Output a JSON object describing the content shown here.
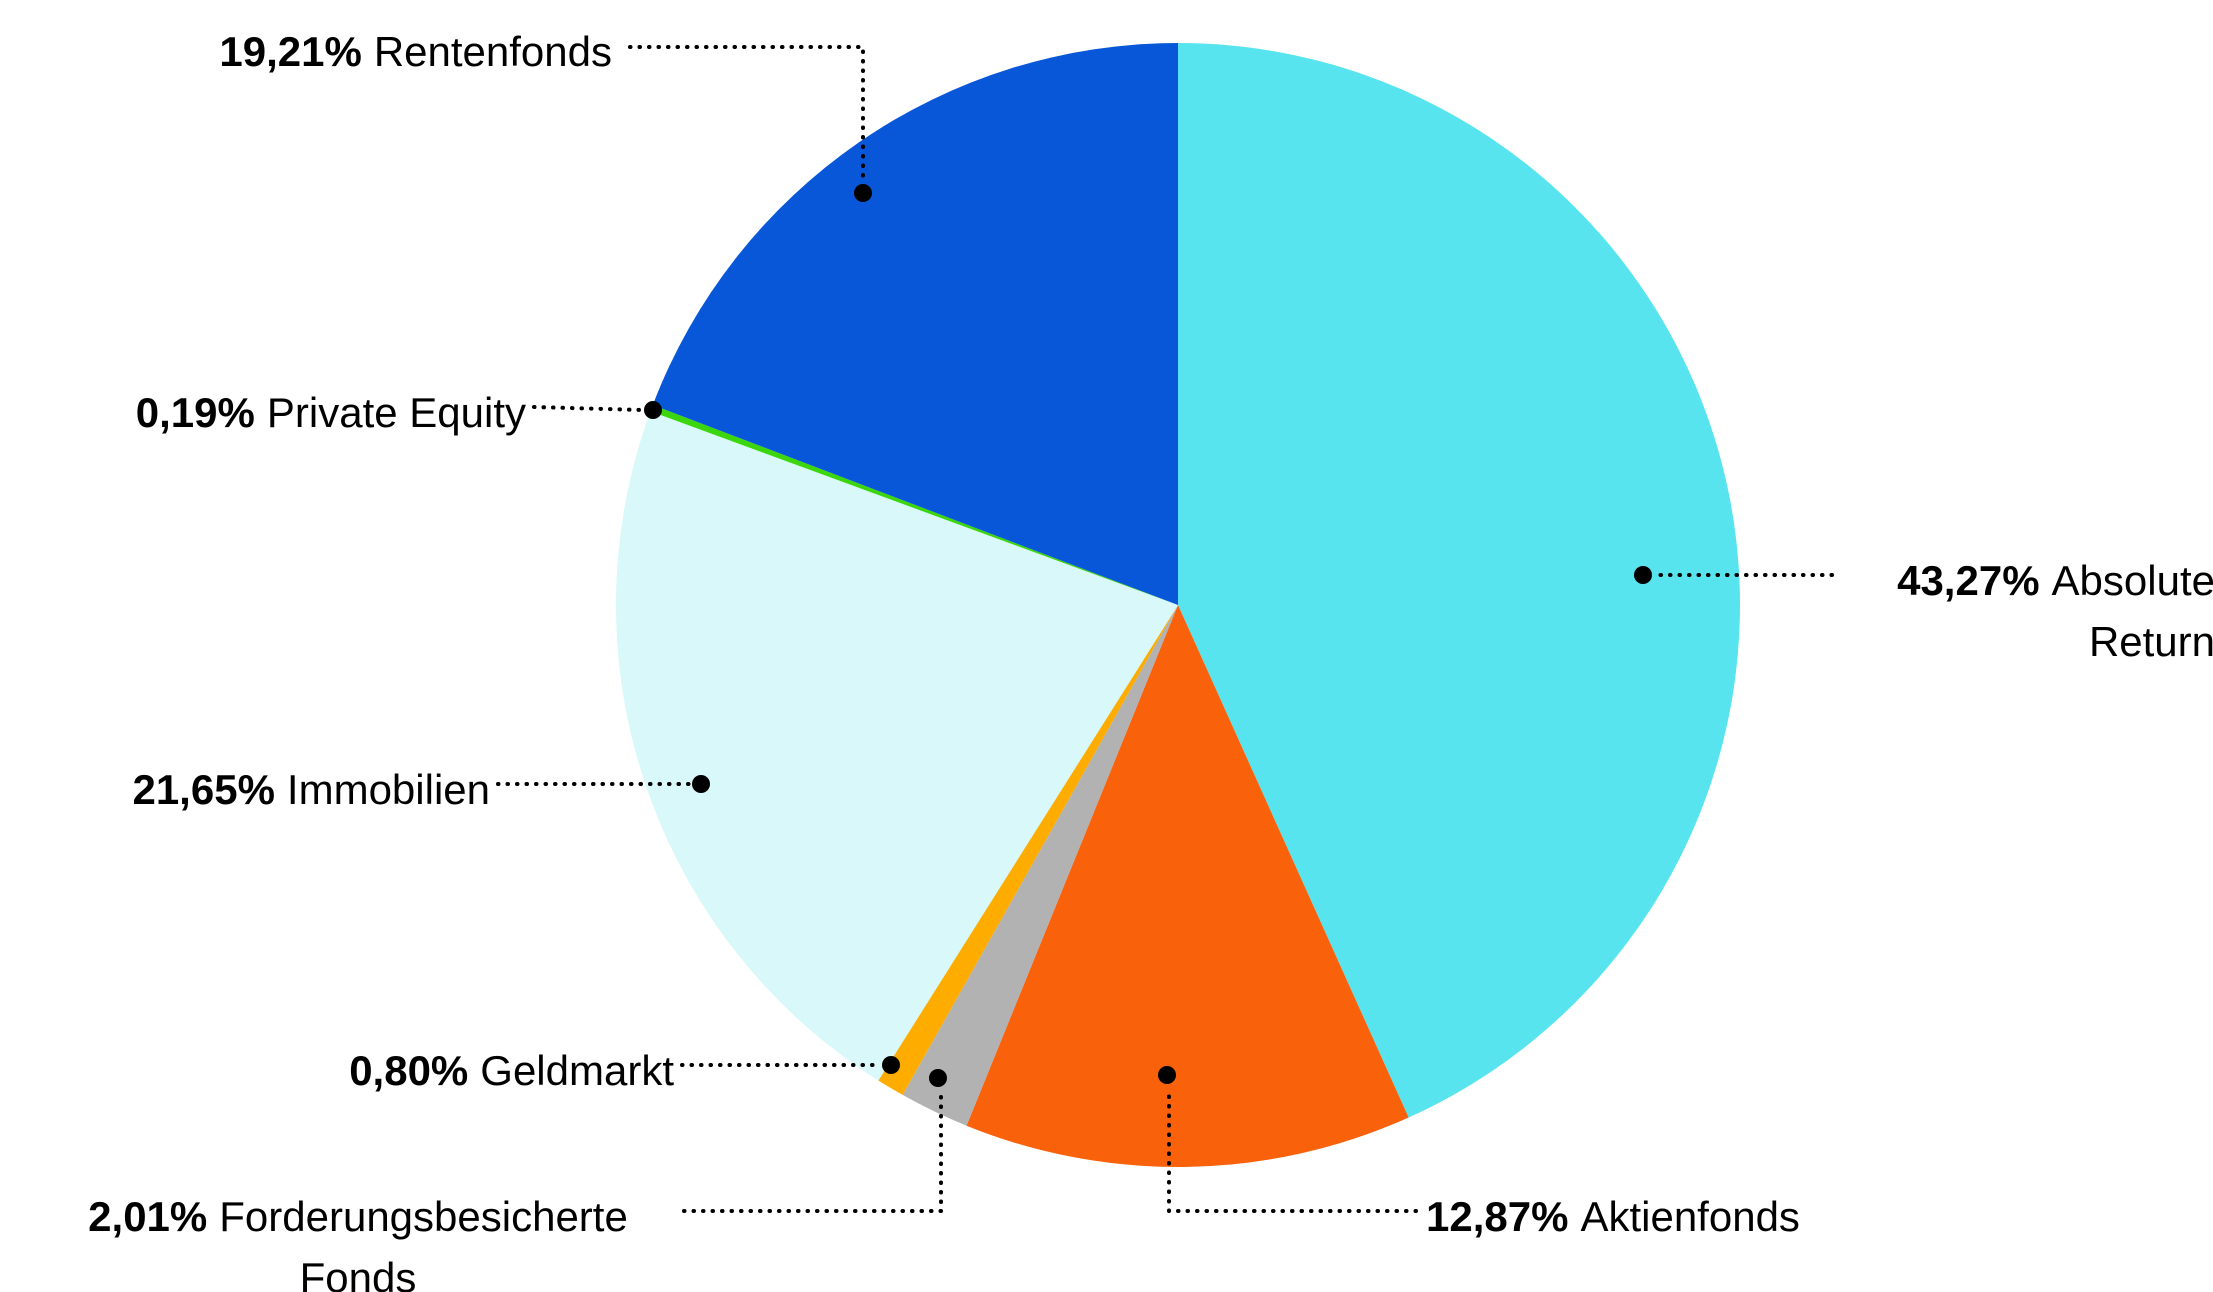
{
  "page": {
    "background": "#ffffff"
  },
  "chart_data": {
    "type": "pie",
    "title": "",
    "start_angle_deg": 0,
    "direction": "clockwise",
    "legend_position": "external-callouts-with-dotted-leaders",
    "total": 100.0,
    "series": [
      {
        "label": "Absolute Return",
        "value": 43.27,
        "value_label": "43,27%",
        "color": "#57E4EF"
      },
      {
        "label": "Aktienfonds",
        "value": 12.87,
        "value_label": "12,87%",
        "color": "#F9610B"
      },
      {
        "label": "Forderungsbesicherte Fonds",
        "value": 2.01,
        "value_label": "2,01%",
        "color": "#B2B2B2"
      },
      {
        "label": "Geldmarkt",
        "value": 0.8,
        "value_label": "0,80%",
        "color": "#FFAC00"
      },
      {
        "label": "Immobilien",
        "value": 21.65,
        "value_label": "21,65%",
        "color": "#D8F8F9"
      },
      {
        "label": "Private Equity",
        "value": 0.19,
        "value_label": "0,19%",
        "color": "#3CD60D"
      },
      {
        "label": "Rentenfonds",
        "value": 19.21,
        "value_label": "19,21%",
        "color": "#0857D9"
      }
    ],
    "callouts": [
      {
        "pct": "19,21%",
        "label": "Rentenfonds"
      },
      {
        "pct": "0,19%",
        "label": "Private Equity"
      },
      {
        "pct": "21,65%",
        "label": "Immobilien"
      },
      {
        "pct": "0,80%",
        "label": "Geldmarkt"
      },
      {
        "pct": "2,01%",
        "label": "Forderungsbesicherte Fonds"
      },
      {
        "pct": "12,87%",
        "label": "Aktienfonds"
      },
      {
        "pct": "43,27%",
        "label": "Absolute Return"
      }
    ],
    "leader_style": {
      "line": "dotted",
      "color": "#000000"
    }
  }
}
